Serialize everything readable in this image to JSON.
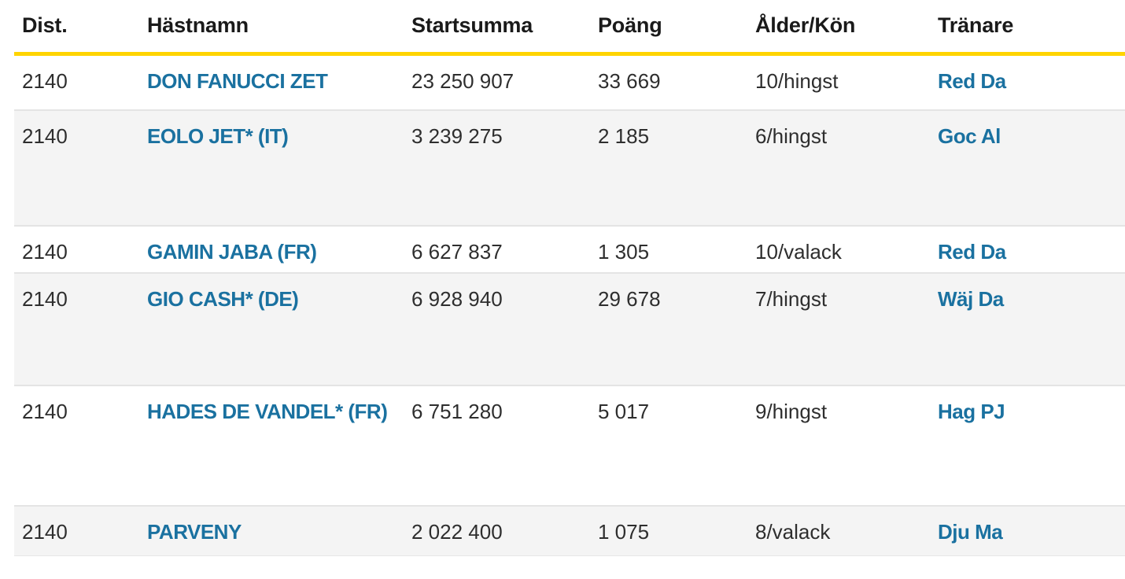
{
  "colors": {
    "accent_yellow": "#ffd400",
    "link_blue": "#1a71a0",
    "alt_row_bg": "#f4f4f4",
    "header_text": "#1a1a1a",
    "body_text": "#2e2e2e"
  },
  "table": {
    "columns": [
      {
        "key": "dist",
        "label": "Dist."
      },
      {
        "key": "name",
        "label": "Hästnamn"
      },
      {
        "key": "startsum",
        "label": "Startsumma"
      },
      {
        "key": "points",
        "label": "Poäng"
      },
      {
        "key": "age_sex",
        "label": "Ålder/Kön"
      },
      {
        "key": "trainer",
        "label": "Tränare"
      }
    ],
    "rows": [
      {
        "dist": "2140",
        "name": "DON FANUCCI ZET",
        "startsum": "23 250 907",
        "points": "33 669",
        "age_sex": "10/hingst",
        "trainer": "Red Da"
      },
      {
        "dist": "2140",
        "name": "EOLO JET* (IT)",
        "startsum": "3 239 275",
        "points": "2 185",
        "age_sex": "6/hingst",
        "trainer": "Goc Al"
      },
      {
        "dist": "2140",
        "name": "GAMIN JABA (FR)",
        "startsum": "6 627 837",
        "points": "1 305",
        "age_sex": "10/valack",
        "trainer": "Red Da"
      },
      {
        "dist": "2140",
        "name": "GIO CASH* (DE)",
        "startsum": "6 928 940",
        "points": "29 678",
        "age_sex": "7/hingst",
        "trainer": "Wäj Da"
      },
      {
        "dist": "2140",
        "name": "HADES DE VANDEL* (FR)",
        "startsum": "6 751 280",
        "points": "5 017",
        "age_sex": "9/hingst",
        "trainer": "Hag PJ"
      },
      {
        "dist": "2140",
        "name": "PARVENY",
        "startsum": "2 022 400",
        "points": "1 075",
        "age_sex": "8/valack",
        "trainer": "Dju Ma"
      }
    ]
  }
}
